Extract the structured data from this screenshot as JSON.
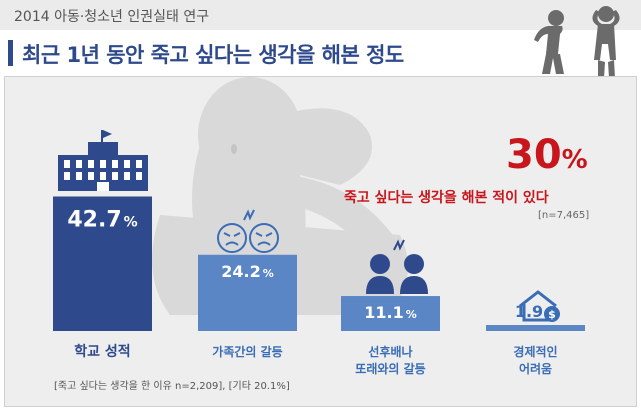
{
  "header": {
    "subtitle": "2014 아동·청소년 인권실태 연구",
    "title": "최근 1년 동안 죽고 싶다는 생각을 해본 정도"
  },
  "highlight": {
    "value": "30",
    "unit": "%",
    "description": "죽고 싶다는 생각을 해본 적이 있다",
    "sample": "[n=7,465]"
  },
  "chart_data": {
    "type": "bar",
    "categories": [
      "학교 성적",
      "가족간의 갈등",
      "선후배나 또래와의 갈등",
      "경제적인 어려움"
    ],
    "values": [
      42.7,
      24.2,
      11.1,
      1.9
    ],
    "value_labels": [
      "42.7",
      "24.2",
      "11.1",
      "1.9"
    ],
    "value_unit": "%",
    "category_lines": [
      [
        "학교 성적"
      ],
      [
        "가족간의 갈등"
      ],
      [
        "선후배나",
        "또래와의 갈등"
      ],
      [
        "경제적인",
        "어려움"
      ]
    ],
    "icons": [
      "school-building-icon",
      "angry-faces-icon",
      "students-icon",
      "house-money-icon"
    ],
    "colors": {
      "first_bar": "#2e4a8c",
      "other_bars": "#5b86c5",
      "first_label": "#2e4a8c",
      "other_labels": "#3a6db5",
      "highlight": "#c8161d",
      "topbar": "#ebebeb",
      "panel": "#eeeeee"
    }
  },
  "footnote": "[죽고 싶다는 생각을 한 이유 n=2,209], [기타 20.1%]"
}
